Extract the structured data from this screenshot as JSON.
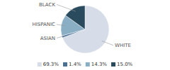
{
  "chart_data": {
    "type": "pie",
    "categories": [
      "WHITE",
      "ASIAN",
      "HISPANIC",
      "BLACK"
    ],
    "values": [
      69.3,
      1.4,
      14.3,
      15.0
    ],
    "value_labels": [
      "69.3%",
      "1.4%",
      "14.3%",
      "15.0%"
    ],
    "colors": [
      "#d6dde8",
      "#4a7096",
      "#8aafc4",
      "#2a4a5e"
    ]
  }
}
